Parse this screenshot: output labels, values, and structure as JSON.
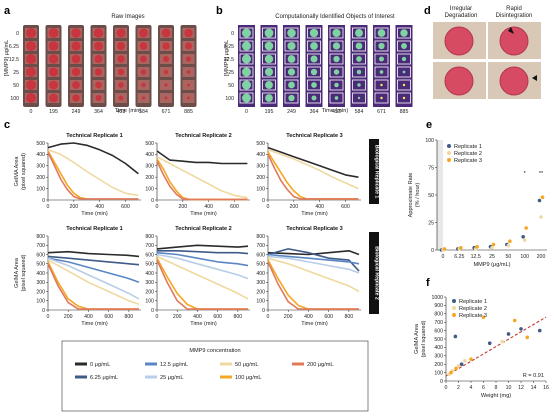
{
  "panels": {
    "a": {
      "label": "a",
      "title": "Raw Images",
      "ylabel": "[MMP9] μg/mL",
      "xlabel": "Time (min)",
      "rows": [
        "0",
        "6.25",
        "12.5",
        "25",
        "50",
        "100"
      ],
      "cols": [
        "0",
        "195",
        "249",
        "364",
        "453",
        "584",
        "671",
        "885"
      ]
    },
    "b": {
      "label": "b",
      "title": "Computationally Identified Objects of Interest",
      "ylabel": "[MMP9] μg/mL",
      "xlabel": "Time (min)",
      "cols": [
        "0",
        "195",
        "249",
        "364",
        "453",
        "584",
        "671",
        "885"
      ]
    },
    "d": {
      "label": "d",
      "titles": [
        "Irregular Degradation",
        "Rapid Disintegration"
      ]
    },
    "c": {
      "label": "c",
      "subtitles": [
        "Technical Replicate 1",
        "Technical Replicate 2",
        "Technical Replicate 3"
      ],
      "ylabel": "GelMA Area (pixel squared)",
      "xlabel": "Time (min)",
      "bio_labels": [
        "Biological Replicate 1",
        "Biological Replicate 2"
      ]
    },
    "e": {
      "label": "e"
    },
    "f": {
      "label": "f"
    }
  },
  "legend_c": {
    "title": "MMP9 concentration",
    "items": [
      {
        "label": "0 μg/mL",
        "color": "#2b2b2b"
      },
      {
        "label": "12.5 μg/mL",
        "color": "#5b86c4"
      },
      {
        "label": "50 μg/mL",
        "color": "#f0d9a0"
      },
      {
        "label": "200 μg/mL",
        "color": "#e07a5a"
      },
      {
        "label": "6.25 μg/mL",
        "color": "#3f5b87"
      },
      {
        "label": "25 μg/mL",
        "color": "#b8cde8"
      },
      {
        "label": "100 μg/mL",
        "color": "#f5a623"
      }
    ]
  },
  "chart_data": [
    {
      "id": "c-row1",
      "type": "line",
      "ylim": [
        0,
        500
      ],
      "yticks": [
        0,
        100,
        200,
        300,
        400,
        500
      ],
      "xlim": [
        0,
        720
      ],
      "xticks": [
        0,
        200,
        400,
        600
      ],
      "panels": [
        {
          "series": [
            {
              "color": "#2b2b2b",
              "x": [
                0,
                100,
                200,
                300,
                400,
                500,
                600,
                700
              ],
              "y": [
                460,
                490,
                500,
                480,
                440,
                390,
                320,
                230
              ]
            },
            {
              "color": "#f0d9a0",
              "x": [
                0,
                100,
                200,
                300,
                400,
                500,
                600,
                700
              ],
              "y": [
                440,
                400,
                330,
                250,
                180,
                110,
                60,
                40
              ]
            },
            {
              "color": "#f5a623",
              "x": [
                0,
                50,
                100,
                150,
                200,
                250,
                300
              ],
              "y": [
                430,
                330,
                230,
                130,
                60,
                20,
                10
              ]
            },
            {
              "color": "#e07a5a",
              "x": [
                0,
                50,
                100,
                150,
                200,
                250,
                700
              ],
              "y": [
                420,
                300,
                180,
                90,
                30,
                10,
                10
              ]
            }
          ]
        },
        {
          "series": [
            {
              "color": "#2b2b2b",
              "x": [
                0,
                100,
                200,
                300,
                400,
                500,
                600,
                700
              ],
              "y": [
                430,
                350,
                340,
                330,
                330,
                320,
                320,
                320
              ]
            },
            {
              "color": "#f0d9a0",
              "x": [
                0,
                100,
                200,
                300,
                400,
                500,
                600,
                700
              ],
              "y": [
                380,
                320,
                260,
                200,
                140,
                80,
                40,
                20
              ]
            },
            {
              "color": "#f5a623",
              "x": [
                0,
                50,
                100,
                150,
                200,
                250,
                700
              ],
              "y": [
                360,
                270,
                160,
                80,
                20,
                5,
                5
              ]
            },
            {
              "color": "#e07a5a",
              "x": [
                0,
                50,
                100,
                150,
                200,
                250,
                700
              ],
              "y": [
                340,
                220,
                120,
                50,
                10,
                5,
                5
              ]
            }
          ]
        },
        {
          "series": [
            {
              "color": "#2b2b2b",
              "x": [
                0,
                100,
                200,
                300,
                400,
                500,
                600,
                700
              ],
              "y": [
                460,
                420,
                380,
                340,
                300,
                260,
                220,
                200
              ]
            },
            {
              "color": "#f0d9a0",
              "x": [
                0,
                100,
                200,
                300,
                400,
                500,
                600,
                700
              ],
              "y": [
                440,
                400,
                360,
                310,
                260,
                200,
                150,
                100
              ]
            },
            {
              "color": "#f5a623",
              "x": [
                0,
                50,
                100,
                150,
                200,
                250,
                300,
                700
              ],
              "y": [
                420,
                330,
                240,
                150,
                80,
                30,
                10,
                10
              ]
            },
            {
              "color": "#e07a5a",
              "x": [
                0,
                50,
                100,
                150,
                200,
                250,
                700
              ],
              "y": [
                400,
                280,
                170,
                90,
                30,
                10,
                10
              ]
            }
          ]
        }
      ]
    },
    {
      "id": "c-row2",
      "type": "line",
      "ylim": [
        0,
        800
      ],
      "yticks": [
        0,
        100,
        200,
        300,
        400,
        500,
        600,
        700,
        800
      ],
      "xlim": [
        0,
        920
      ],
      "xticks": [
        0,
        200,
        400,
        600,
        800
      ],
      "panels": [
        {
          "series": [
            {
              "color": "#2b2b2b",
              "x": [
                0,
                200,
                400,
                600,
                800,
                900
              ],
              "y": [
                620,
                630,
                610,
                600,
                590,
                580
              ]
            },
            {
              "color": "#3f5b87",
              "x": [
                0,
                200,
                400,
                600,
                800,
                900
              ],
              "y": [
                580,
                560,
                540,
                520,
                500,
                490
              ]
            },
            {
              "color": "#5b86c4",
              "x": [
                0,
                200,
                400,
                600,
                800,
                900
              ],
              "y": [
                560,
                520,
                460,
                400,
                340,
                300
              ]
            },
            {
              "color": "#b8cde8",
              "x": [
                0,
                200,
                400,
                600,
                800,
                900
              ],
              "y": [
                560,
                480,
                380,
                280,
                180,
                120
              ]
            },
            {
              "color": "#f0d9a0",
              "x": [
                0,
                200,
                400,
                600,
                800,
                900
              ],
              "y": [
                540,
                420,
                300,
                200,
                100,
                60
              ]
            },
            {
              "color": "#f5a623",
              "x": [
                0,
                100,
                200,
                300,
                400,
                900
              ],
              "y": [
                520,
                300,
                120,
                40,
                10,
                10
              ]
            },
            {
              "color": "#e07a5a",
              "x": [
                0,
                100,
                200,
                300,
                900
              ],
              "y": [
                500,
                260,
                80,
                10,
                10
              ]
            }
          ]
        },
        {
          "series": [
            {
              "color": "#2b2b2b",
              "x": [
                0,
                200,
                400,
                600,
                800,
                900
              ],
              "y": [
                660,
                680,
                700,
                690,
                680,
                690
              ]
            },
            {
              "color": "#3f5b87",
              "x": [
                0,
                200,
                400,
                600,
                800,
                900
              ],
              "y": [
                640,
                640,
                630,
                620,
                620,
                610
              ]
            },
            {
              "color": "#5b86c4",
              "x": [
                0,
                200,
                400,
                600,
                800,
                900
              ],
              "y": [
                620,
                600,
                560,
                520,
                500,
                480
              ]
            },
            {
              "color": "#b8cde8",
              "x": [
                0,
                200,
                400,
                600,
                800,
                900
              ],
              "y": [
                600,
                560,
                500,
                440,
                380,
                340
              ]
            },
            {
              "color": "#f0d9a0",
              "x": [
                0,
                200,
                400,
                600,
                800,
                900
              ],
              "y": [
                580,
                480,
                380,
                280,
                180,
                120
              ]
            },
            {
              "color": "#f5a623",
              "x": [
                0,
                100,
                200,
                300,
                400,
                900
              ],
              "y": [
                560,
                360,
                180,
                60,
                10,
                10
              ]
            },
            {
              "color": "#e07a5a",
              "x": [
                0,
                100,
                200,
                300,
                900
              ],
              "y": [
                540,
                300,
                100,
                10,
                10
              ]
            }
          ]
        },
        {
          "series": [
            {
              "color": "#2b2b2b",
              "x": [
                0,
                200,
                400,
                600,
                800,
                900
              ],
              "y": [
                620,
                610,
                600,
                620,
                640,
                600
              ]
            },
            {
              "color": "#3f5b87",
              "x": [
                0,
                200,
                400,
                600,
                800,
                900
              ],
              "y": [
                600,
                660,
                620,
                560,
                540,
                420
              ]
            },
            {
              "color": "#5b86c4",
              "x": [
                0,
                200,
                400,
                600,
                800,
                900
              ],
              "y": [
                600,
                580,
                560,
                540,
                520,
                500
              ]
            },
            {
              "color": "#b8cde8",
              "x": [
                0,
                200,
                400,
                600,
                800,
                900
              ],
              "y": [
                580,
                560,
                520,
                480,
                440,
                400
              ]
            },
            {
              "color": "#f0d9a0",
              "x": [
                0,
                200,
                400,
                600,
                800,
                900
              ],
              "y": [
                560,
                500,
                420,
                340,
                260,
                200
              ]
            },
            {
              "color": "#f5a623",
              "x": [
                0,
                100,
                200,
                300,
                400,
                900
              ],
              "y": [
                540,
                340,
                160,
                50,
                10,
                10
              ]
            },
            {
              "color": "#e07a5a",
              "x": [
                0,
                100,
                200,
                300,
                900
              ],
              "y": [
                520,
                280,
                90,
                10,
                10
              ]
            }
          ]
        }
      ]
    },
    {
      "id": "e",
      "type": "scatter",
      "ylabel": "Approximate Rate (% / hour)",
      "xlabel": "MMP9 (μg/mL)",
      "categories": [
        "0",
        "6.25",
        "12.5",
        "25",
        "50",
        "100",
        "200"
      ],
      "ylim": [
        0,
        100
      ],
      "yticks": [
        0,
        25,
        50,
        75,
        100
      ],
      "annotations": [
        {
          "text": "*",
          "category": "100",
          "y": 68
        },
        {
          "text": "**",
          "category": "200",
          "y": 68
        }
      ],
      "legend": "top-left",
      "series": [
        {
          "name": "Replicate 1",
          "color": "#3f5b87",
          "values": [
            0,
            1,
            2,
            3,
            5,
            12,
            45
          ]
        },
        {
          "name": "Replicate 2",
          "color": "#f0d9a0",
          "values": [
            0,
            1,
            1,
            2,
            4,
            9,
            30
          ]
        },
        {
          "name": "Replicate 3",
          "color": "#f5a623",
          "values": [
            1,
            2,
            3,
            5,
            8,
            20,
            48
          ]
        }
      ]
    },
    {
      "id": "f",
      "type": "scatter",
      "ylabel": "GelMA Area (pixel squared)",
      "xlabel": "Weight (mg)",
      "xlim": [
        0,
        16
      ],
      "xticks": [
        0,
        2,
        4,
        6,
        8,
        10,
        12,
        14,
        16
      ],
      "ylim": [
        0,
        1000
      ],
      "yticks": [
        0,
        100,
        200,
        300,
        400,
        500,
        600,
        700,
        800,
        900,
        1000
      ],
      "legend": "top-left",
      "annotation": "R = 0.91",
      "trendline": {
        "x": [
          0,
          16
        ],
        "y": [
          60,
          760
        ]
      },
      "series": [
        {
          "name": "Replicate 1",
          "color": "#3f5b87",
          "x": [
            1.5,
            2.5,
            7,
            10,
            12,
            15
          ],
          "y": [
            530,
            200,
            450,
            560,
            620,
            600
          ]
        },
        {
          "name": "Replicate 2",
          "color": "#f0d9a0",
          "x": [
            0.5,
            1,
            2,
            3,
            9
          ],
          "y": [
            80,
            120,
            180,
            240,
            470
          ]
        },
        {
          "name": "Replicate 3",
          "color": "#f5a623",
          "x": [
            0.8,
            1.6,
            4,
            6,
            11,
            13
          ],
          "y": [
            100,
            150,
            260,
            760,
            720,
            520
          ]
        }
      ]
    }
  ]
}
